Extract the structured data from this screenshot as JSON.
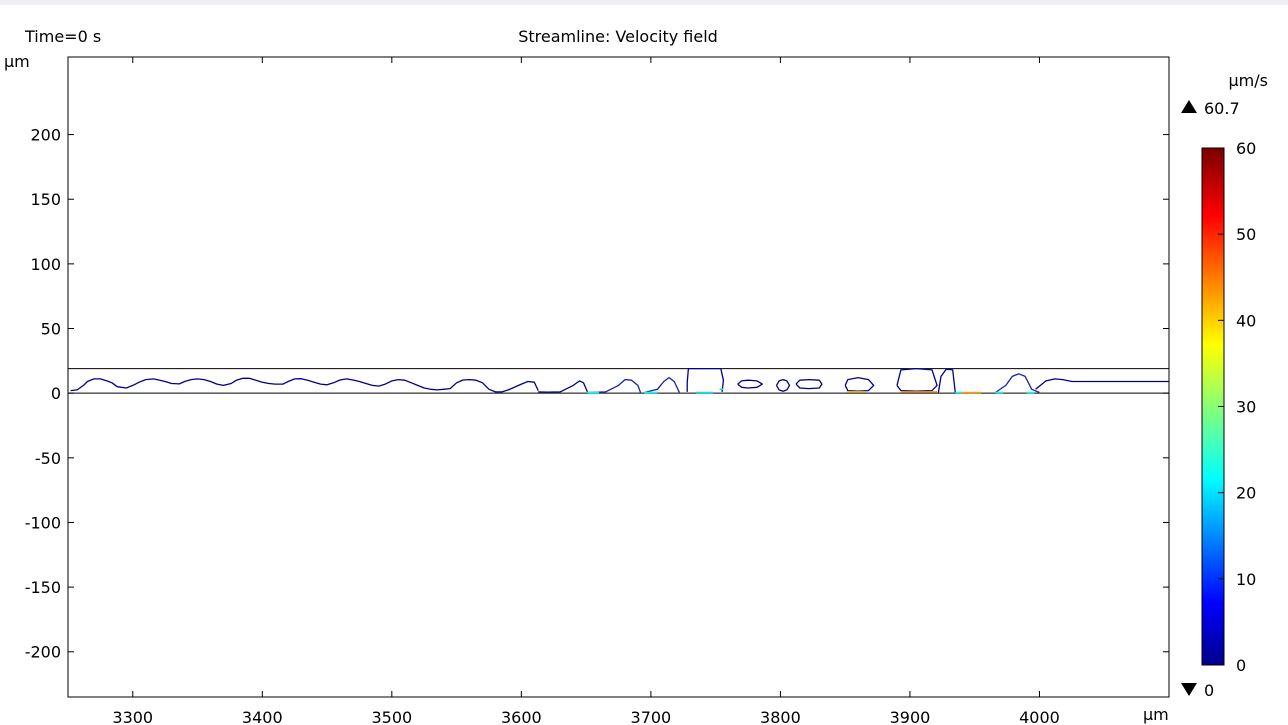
{
  "header": {
    "time_label": "Time=0 s",
    "title": "Streamline: Velocity field"
  },
  "chart_data": {
    "type": "streamline",
    "title": "Streamline: Velocity field",
    "time_label": "Time=0 s",
    "xlabel": "μm",
    "ylabel": "μm",
    "x_ticks": [
      3300,
      3400,
      3500,
      3600,
      3700,
      3800,
      3900,
      4000
    ],
    "y_ticks": [
      200,
      150,
      100,
      50,
      0,
      -50,
      -100,
      -150,
      -200
    ],
    "xlim": [
      3250,
      4100
    ],
    "ylim": [
      -235,
      260
    ],
    "grid": false,
    "channel": {
      "y_bottom": 0,
      "y_top": 19
    },
    "colorbar": {
      "unit": "μm/s",
      "max_label": "60.7",
      "min_label": "0",
      "range": [
        0,
        60
      ],
      "ticks": [
        60,
        50,
        40,
        30,
        20,
        10,
        0
      ],
      "colormap": "jet"
    },
    "streamlines": [
      {
        "name": "wavy-left",
        "color": "#00008b",
        "x": [
          3252,
          3257,
          3262,
          3265,
          3270,
          3275,
          3280,
          3284,
          3288,
          3295,
          3300,
          3305,
          3310,
          3316,
          3320,
          3325,
          3330,
          3336,
          3340,
          3345,
          3350,
          3355,
          3360,
          3365,
          3370,
          3376,
          3380,
          3385,
          3390,
          3395,
          3400,
          3405,
          3410,
          3416,
          3420,
          3425,
          3430,
          3435,
          3440,
          3445,
          3450,
          3455,
          3460,
          3465,
          3470,
          3475,
          3480,
          3485,
          3490,
          3495,
          3500,
          3505,
          3510,
          3515,
          3520,
          3525,
          3530,
          3535,
          3540,
          3545,
          3550,
          3555,
          3560,
          3565,
          3570,
          3575
        ],
        "y": [
          2,
          2.5,
          6,
          9,
          11,
          11,
          9.5,
          8,
          5,
          4,
          6,
          8.5,
          10.5,
          11,
          10.2,
          9,
          7.5,
          7.2,
          9,
          10.5,
          11,
          10.5,
          9,
          7,
          6,
          7.5,
          10,
          11.5,
          11.5,
          10,
          8.5,
          7.5,
          7,
          7,
          9,
          11,
          11.2,
          10,
          8.5,
          7,
          6.5,
          8,
          10.2,
          11,
          10.2,
          9,
          7.5,
          6,
          5.5,
          7,
          9.5,
          10.5,
          10,
          8,
          6,
          4,
          3,
          2.5,
          3,
          3.5,
          8,
          10.2,
          10.5,
          10,
          8,
          3
        ]
      },
      {
        "name": "low-wave-1",
        "color": "#00008b",
        "x": [
          3575,
          3580,
          3585,
          3590,
          3600,
          3605,
          3610,
          3613
        ],
        "y": [
          3,
          1,
          1,
          2.5,
          7,
          9,
          8.5,
          2
        ]
      },
      {
        "name": "low-wave-2",
        "color": "#00008b",
        "x": [
          3613,
          3620,
          3630,
          3640,
          3645,
          3648,
          3651
        ],
        "y": [
          1,
          0.8,
          1,
          6,
          9.5,
          8,
          1
        ]
      },
      {
        "name": "bump-3680",
        "color": "#1520b0",
        "x": [
          3651,
          3665,
          3675,
          3680,
          3685,
          3690,
          3692
        ],
        "y": [
          0.5,
          1,
          6,
          10.5,
          10,
          6,
          0.5
        ]
      },
      {
        "name": "bump-3714",
        "color": "#1520b0",
        "x": [
          3695,
          3705,
          3710,
          3714,
          3718,
          3722
        ],
        "y": [
          0.5,
          3,
          9,
          12,
          9,
          0.5
        ]
      },
      {
        "name": "tall-loop",
        "color": "#00008b",
        "x": [
          3728,
          3728,
          3729,
          3740,
          3754,
          3756,
          3755
        ],
        "y": [
          1,
          8,
          19,
          19,
          19,
          10,
          1
        ]
      },
      {
        "name": "small-loop-1",
        "color": "#00008b",
        "x": [
          3767,
          3770,
          3775,
          3782,
          3786,
          3782,
          3775,
          3770,
          3767
        ],
        "y": [
          7,
          9.5,
          10,
          9.5,
          7,
          4.5,
          4,
          4.5,
          7
        ]
      },
      {
        "name": "small-loop-2",
        "color": "#00008b",
        "x": [
          3797,
          3799,
          3802,
          3805,
          3807,
          3805,
          3802,
          3799,
          3797
        ],
        "y": [
          6,
          9.5,
          10.5,
          9.5,
          6,
          2.5,
          1.5,
          2.5,
          6
        ]
      },
      {
        "name": "small-loop-3",
        "color": "#00008b",
        "x": [
          3812,
          3815,
          3822,
          3830,
          3832,
          3830,
          3822,
          3815,
          3812
        ],
        "y": [
          7,
          10,
          10.5,
          10,
          7,
          4,
          3.5,
          4,
          7
        ]
      },
      {
        "name": "mid-loop-1",
        "color": "#00008b",
        "x": [
          3850,
          3852,
          3860,
          3868,
          3872,
          3868,
          3860,
          3852,
          3850
        ],
        "y": [
          6,
          10.5,
          12,
          10.5,
          6,
          2,
          1.5,
          2,
          6
        ]
      },
      {
        "name": "mid-loop-2",
        "color": "#00008b",
        "x": [
          3890,
          3893,
          3905,
          3917,
          3921,
          3917,
          3905,
          3893,
          3890
        ],
        "y": [
          6,
          18,
          19,
          18,
          6,
          2,
          1.5,
          2,
          6
        ]
      },
      {
        "name": "right-arc",
        "color": "#00008b",
        "x": [
          3922,
          3924,
          3928,
          3933,
          3935
        ],
        "y": [
          0.5,
          13,
          18.5,
          18,
          0.5
        ]
      },
      {
        "name": "bump-3984",
        "color": "#1520b0",
        "x": [
          3966,
          3974,
          3979,
          3984,
          3989,
          3994,
          4000
        ],
        "y": [
          0.5,
          6,
          13,
          15,
          13,
          3,
          0.5
        ]
      },
      {
        "name": "outlet",
        "color": "#00008b",
        "x": [
          3997,
          4005,
          4012,
          4018,
          4025,
          4100
        ],
        "y": [
          3,
          9.5,
          11,
          10.5,
          9,
          9
        ]
      }
    ],
    "highlights": [
      {
        "x1": 3651,
        "x2": 3660,
        "y": 0.5,
        "color": "#00ffff"
      },
      {
        "x1": 3695,
        "x2": 3705,
        "y": 0.5,
        "color": "#00ffff"
      },
      {
        "x1": 3735,
        "x2": 3748,
        "y": 0.5,
        "color": "#00e0ff"
      },
      {
        "x1": 3753,
        "x2": 3756,
        "y": 3,
        "color": "#00e0ff"
      },
      {
        "x1": 3851,
        "x2": 3866,
        "y": 1,
        "color": "#ffcc00"
      },
      {
        "x1": 3893,
        "x2": 3921,
        "y": 1,
        "color": "#ff9900"
      },
      {
        "x1": 3940,
        "x2": 3955,
        "y": 0.5,
        "color": "#ff9900"
      },
      {
        "x1": 3935,
        "x2": 3940,
        "y": 0.5,
        "color": "#00ffff"
      },
      {
        "x1": 3966,
        "x2": 3972,
        "y": 0.5,
        "color": "#00ffff"
      },
      {
        "x1": 3990,
        "x2": 3996,
        "y": 0.5,
        "color": "#00ffff"
      }
    ]
  }
}
